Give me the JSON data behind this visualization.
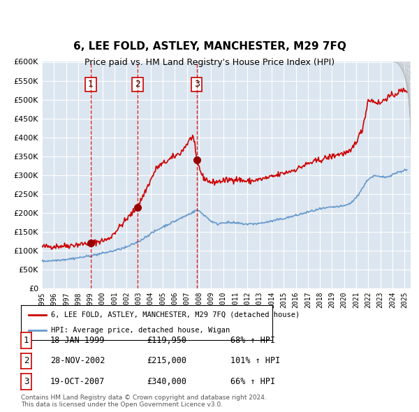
{
  "title": "6, LEE FOLD, ASTLEY, MANCHESTER, M29 7FQ",
  "subtitle": "Price paid vs. HM Land Registry's House Price Index (HPI)",
  "background_color": "#dce6f0",
  "plot_bg_color": "#dce6f0",
  "red_line_color": "#cc0000",
  "blue_line_color": "#6699cc",
  "sale_marker_color": "#990000",
  "vline_color": "#cc0000",
  "sales": [
    {
      "label": "1",
      "date_num": 1999.04,
      "price": 119950,
      "date_str": "18-JAN-1999",
      "hpi_pct": "68%"
    },
    {
      "label": "2",
      "date_num": 2002.91,
      "price": 215000,
      "date_str": "28-NOV-2002",
      "hpi_pct": "101%"
    },
    {
      "label": "3",
      "date_num": 2007.8,
      "price": 340000,
      "date_str": "19-OCT-2007",
      "hpi_pct": "66%"
    }
  ],
  "xlim": [
    1995.0,
    2025.5
  ],
  "ylim": [
    0,
    600000
  ],
  "yticks": [
    0,
    50000,
    100000,
    150000,
    200000,
    250000,
    300000,
    350000,
    400000,
    450000,
    500000,
    550000,
    600000
  ],
  "xticks": [
    1995,
    1996,
    1997,
    1998,
    1999,
    2000,
    2001,
    2002,
    2003,
    2004,
    2005,
    2006,
    2007,
    2008,
    2009,
    2010,
    2011,
    2012,
    2013,
    2014,
    2015,
    2016,
    2017,
    2018,
    2019,
    2020,
    2021,
    2022,
    2023,
    2024,
    2025
  ],
  "legend_label_red": "6, LEE FOLD, ASTLEY, MANCHESTER, M29 7FQ (detached house)",
  "legend_label_blue": "HPI: Average price, detached house, Wigan",
  "footer": "Contains HM Land Registry data © Crown copyright and database right 2024.\nThis data is licensed under the Open Government Licence v3.0.",
  "table_rows": [
    [
      "1",
      "18-JAN-1999",
      "£119,950",
      "68% ↑ HPI"
    ],
    [
      "2",
      "28-NOV-2002",
      "£215,000",
      "101% ↑ HPI"
    ],
    [
      "3",
      "19-OCT-2007",
      "£340,000",
      "66% ↑ HPI"
    ]
  ]
}
